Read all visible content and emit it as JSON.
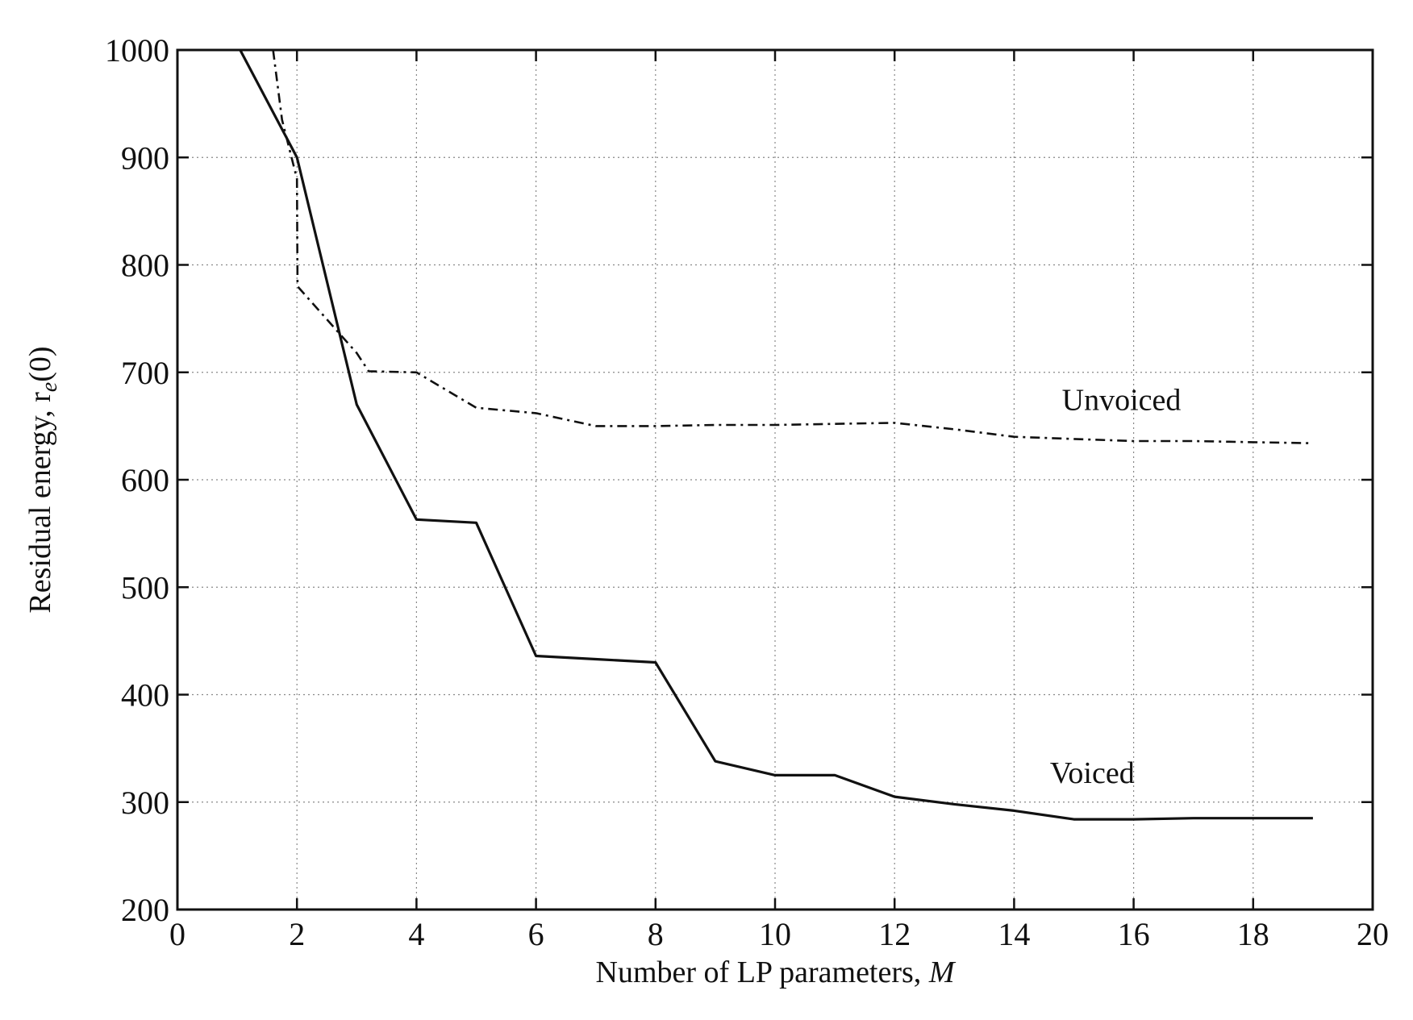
{
  "chart_data": {
    "type": "line",
    "title": "",
    "xlabel": "Number of LP parameters, ",
    "xlabel_symbol": "M",
    "ylabel": "Residual energy, r",
    "ylabel_subscript": "e",
    "ylabel_tail": "(0)",
    "xlim": [
      0,
      20
    ],
    "ylim": [
      200,
      1000
    ],
    "xticks": [
      0,
      2,
      4,
      6,
      8,
      10,
      12,
      14,
      16,
      18,
      20
    ],
    "yticks": [
      200,
      300,
      400,
      500,
      600,
      700,
      800,
      900,
      1000
    ],
    "grid": true,
    "series": [
      {
        "name": "Voiced",
        "style": "solid",
        "x": [
          1.05,
          2,
          3,
          4,
          5,
          6,
          7,
          8,
          9,
          10,
          11,
          12,
          13,
          14,
          15,
          16,
          17,
          18,
          19
        ],
        "y": [
          1000,
          900,
          670,
          563,
          560,
          436,
          433,
          430,
          338,
          325,
          325,
          305,
          298,
          292,
          284,
          284,
          285,
          285,
          285
        ]
      },
      {
        "name": "Unvoiced",
        "style": "dash-dot",
        "x": [
          1.6,
          1.75,
          2,
          2.01,
          3,
          3.2,
          4,
          5,
          6,
          7,
          8,
          9,
          10,
          11,
          12,
          13,
          14,
          15,
          16,
          17,
          18,
          19
        ],
        "y": [
          1000,
          935,
          880,
          780,
          718,
          701,
          700,
          667,
          662,
          650,
          650,
          651,
          651,
          652,
          653,
          647,
          640,
          638,
          636,
          636,
          635,
          634
        ]
      }
    ],
    "annotations": [
      {
        "text": "Unvoiced",
        "x": 14.8,
        "y": 665
      },
      {
        "text": "Voiced",
        "x": 14.6,
        "y": 318
      }
    ],
    "colors": {
      "line": "#111111",
      "grid": "#888888",
      "background": "#ffffff"
    }
  }
}
